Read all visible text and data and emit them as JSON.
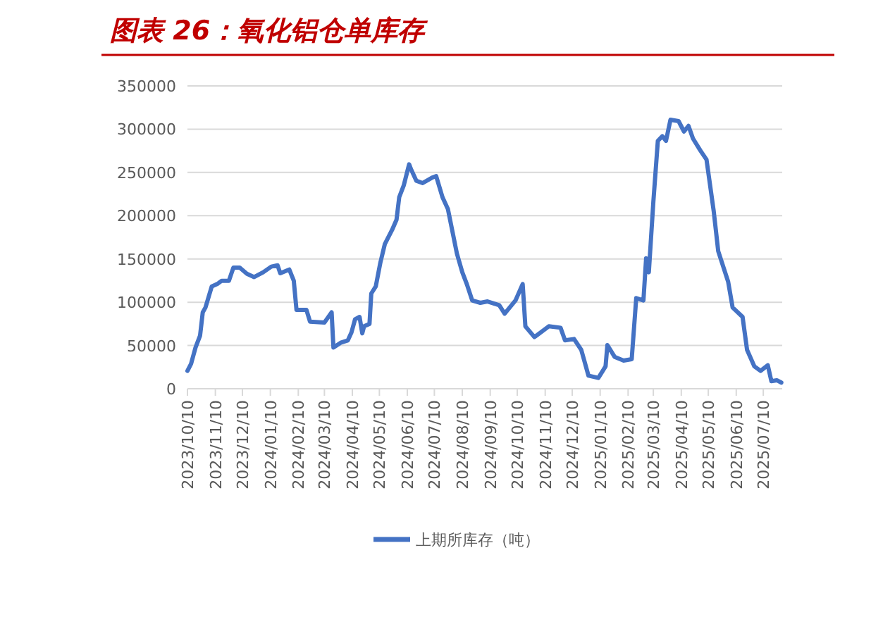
{
  "chart_data": {
    "type": "line",
    "title": "图表 26：氧化铝仓单库存",
    "x": [
      "2023-10-10",
      "2023-10-14",
      "2023-10-19",
      "2023-10-24",
      "2023-10-27",
      "2023-10-30",
      "2023-11-06",
      "2023-11-12",
      "2023-11-17",
      "2023-11-25",
      "2023-11-30",
      "2023-12-07",
      "2023-12-15",
      "2023-12-23",
      "2024-01-02",
      "2024-01-11",
      "2024-01-18",
      "2024-01-21",
      "2024-01-31",
      "2024-02-05",
      "2024-02-08",
      "2024-02-19",
      "2024-02-23",
      "2024-03-10",
      "2024-03-18",
      "2024-03-20",
      "2024-03-28",
      "2024-04-05",
      "2024-04-09",
      "2024-04-13",
      "2024-04-18",
      "2024-04-21",
      "2024-04-23",
      "2024-04-29",
      "2024-05-01",
      "2024-05-06",
      "2024-05-11",
      "2024-05-16",
      "2024-05-24",
      "2024-05-29",
      "2024-06-01",
      "2024-06-06",
      "2024-06-12",
      "2024-06-14",
      "2024-06-20",
      "2024-06-27",
      "2024-07-08",
      "2024-07-12",
      "2024-07-19",
      "2024-07-25",
      "2024-08-04",
      "2024-08-10",
      "2024-08-15",
      "2024-08-21",
      "2024-08-30",
      "2024-09-07",
      "2024-09-20",
      "2024-09-26",
      "2024-10-08",
      "2024-10-16",
      "2024-10-19",
      "2024-10-29",
      "2024-11-14",
      "2024-11-27",
      "2024-12-02",
      "2024-12-12",
      "2024-12-20",
      "2024-12-28",
      "2025-01-08",
      "2025-01-16",
      "2025-01-18",
      "2025-01-26",
      "2025-02-05",
      "2025-02-14",
      "2025-02-19",
      "2025-02-27",
      "2025-03-02",
      "2025-03-05",
      "2025-03-10",
      "2025-03-15",
      "2025-03-20",
      "2025-03-24",
      "2025-03-29",
      "2025-04-07",
      "2025-04-13",
      "2025-04-18",
      "2025-04-23",
      "2025-05-01",
      "2025-05-08",
      "2025-05-16",
      "2025-05-21",
      "2025-06-01",
      "2025-06-06",
      "2025-06-17",
      "2025-06-22",
      "2025-06-30",
      "2025-07-07",
      "2025-07-15",
      "2025-07-19",
      "2025-07-25",
      "2025-07-30"
    ],
    "series": [
      {
        "name": "上期所库存（吨）",
        "color": "#4472c4",
        "values": [
          20600,
          28800,
          47700,
          61300,
          88400,
          93900,
          118300,
          121000,
          124800,
          124800,
          140000,
          140000,
          132900,
          129100,
          134600,
          141100,
          142700,
          133500,
          137800,
          124800,
          91200,
          91200,
          77600,
          76500,
          88400,
          47700,
          53200,
          55900,
          65100,
          80300,
          83000,
          64000,
          72200,
          74900,
          110100,
          118300,
          145400,
          167100,
          183400,
          195300,
          221400,
          234900,
          259400,
          253900,
          240400,
          237700,
          244200,
          245800,
          221400,
          207800,
          156300,
          134600,
          121000,
          102000,
          99300,
          100900,
          96600,
          86800,
          102000,
          121000,
          72200,
          59700,
          72200,
          70500,
          55900,
          57500,
          45000,
          15200,
          12500,
          26000,
          50500,
          36900,
          32600,
          34200,
          104700,
          102000,
          150800,
          134600,
          216000,
          286500,
          291900,
          286500,
          310900,
          309300,
          297300,
          303800,
          289200,
          275600,
          264800,
          205100,
          159000,
          123700,
          93900,
          83000,
          45000,
          26000,
          20600,
          27100,
          8700,
          9800,
          7100
        ]
      }
    ],
    "xlim": [
      "2023-10-10",
      "2025-07-31"
    ],
    "xticks": [
      {
        "value": "2023-10-10",
        "label": "2023/10/10"
      },
      {
        "value": "2023-11-10",
        "label": "2023/11/10"
      },
      {
        "value": "2023-12-10",
        "label": "2023/12/10"
      },
      {
        "value": "2024-01-10",
        "label": "2024/01/10"
      },
      {
        "value": "2024-02-10",
        "label": "2024/02/10"
      },
      {
        "value": "2024-03-10",
        "label": "2024/03/10"
      },
      {
        "value": "2024-04-10",
        "label": "2024/04/10"
      },
      {
        "value": "2024-05-10",
        "label": "2024/05/10"
      },
      {
        "value": "2024-06-10",
        "label": "2024/06/10"
      },
      {
        "value": "2024-07-10",
        "label": "2024/07/10"
      },
      {
        "value": "2024-08-10",
        "label": "2024/08/10"
      },
      {
        "value": "2024-09-10",
        "label": "2024/09/10"
      },
      {
        "value": "2024-10-10",
        "label": "2024/10/10"
      },
      {
        "value": "2024-11-10",
        "label": "2024/11/10"
      },
      {
        "value": "2024-12-10",
        "label": "2024/12/10"
      },
      {
        "value": "2025-01-10",
        "label": "2025/01/10"
      },
      {
        "value": "2025-02-10",
        "label": "2025/02/10"
      },
      {
        "value": "2025-03-10",
        "label": "2025/03/10"
      },
      {
        "value": "2025-04-10",
        "label": "2025/04/10"
      },
      {
        "value": "2025-05-10",
        "label": "2025/05/10"
      },
      {
        "value": "2025-06-10",
        "label": "2025/06/10"
      },
      {
        "value": "2025-07-10",
        "label": "2025/07/10"
      }
    ],
    "ylim": [
      0,
      350000
    ],
    "yticks": [
      0,
      50000,
      100000,
      150000,
      200000,
      250000,
      300000,
      350000
    ],
    "grid": "y",
    "legend": "bottom",
    "marker": "none",
    "line_style": "solid"
  }
}
